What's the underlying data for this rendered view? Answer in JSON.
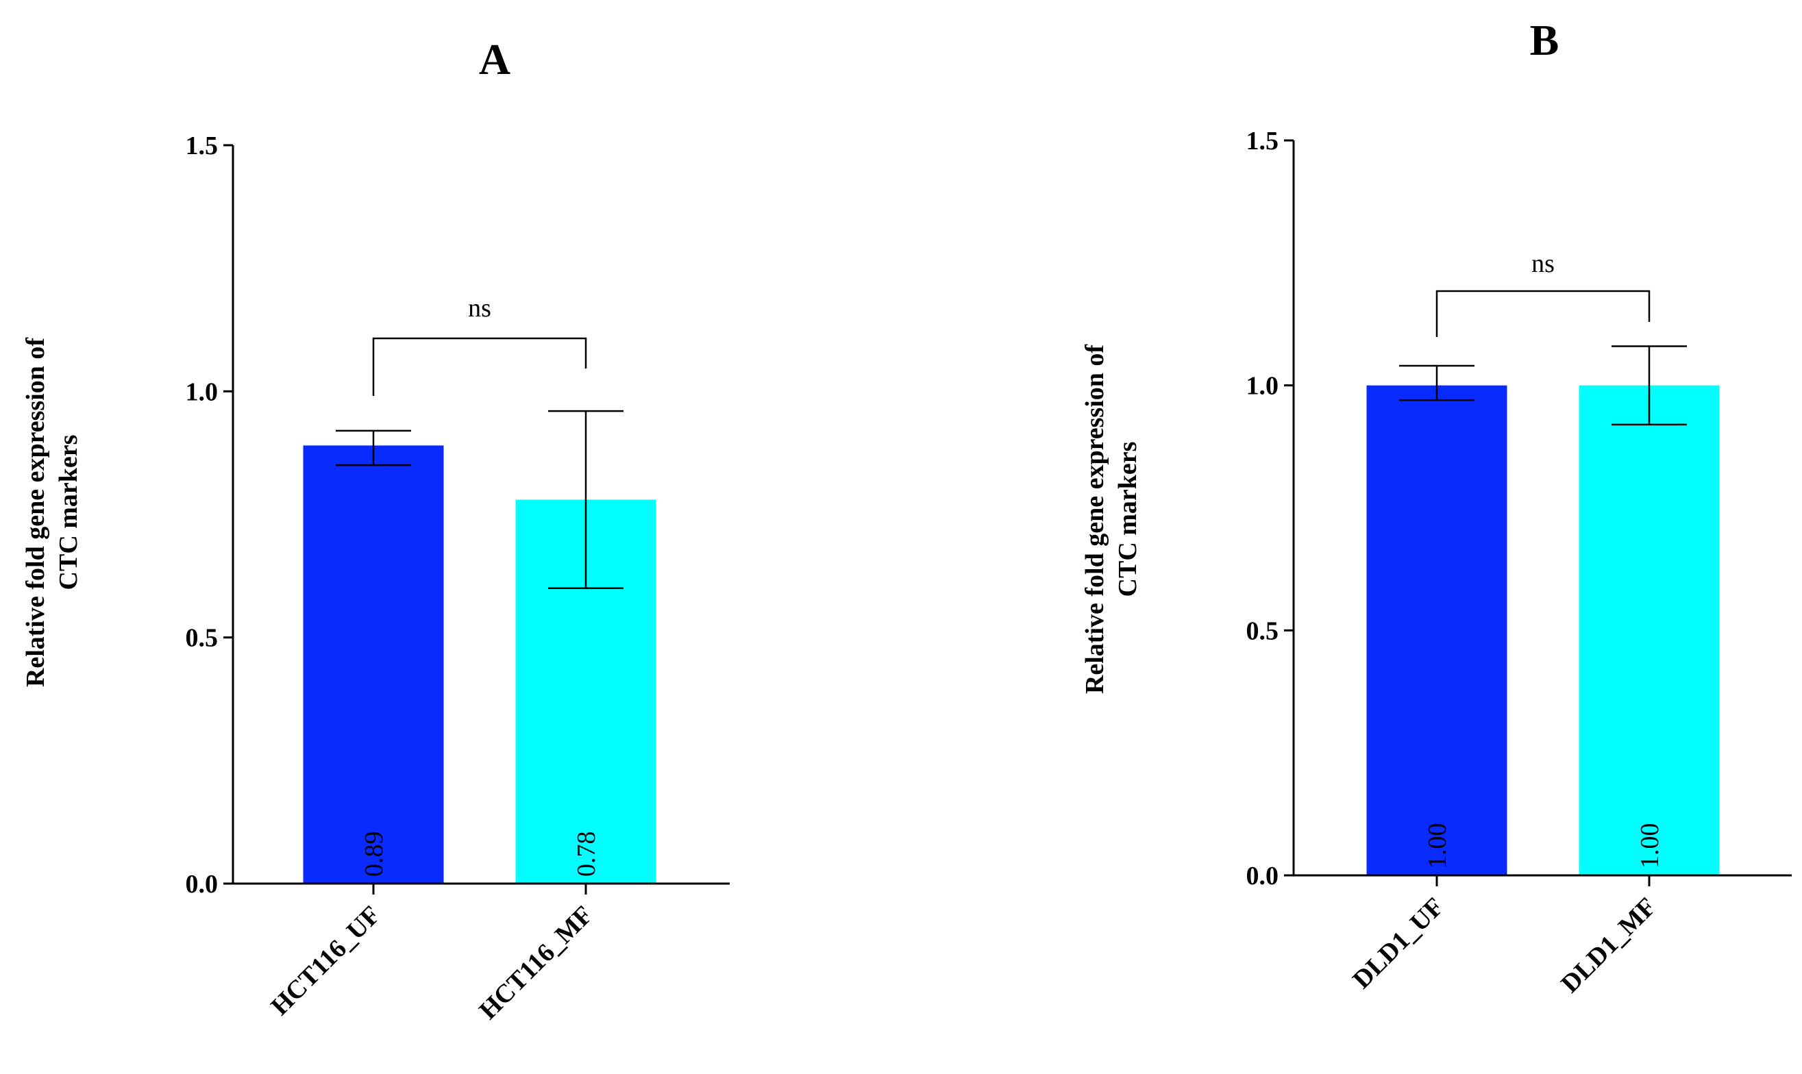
{
  "chart_data": [
    {
      "panel": "A",
      "type": "bar",
      "ylabel_line1": "Relative fold gene expression of",
      "ylabel_line2": "CTC markers",
      "ylim": [
        0,
        1.5
      ],
      "yticks": [
        "0.0",
        "0.5",
        "1.0",
        "1.5"
      ],
      "categories": [
        "HCT116_UF",
        "HCT116_MF"
      ],
      "values": [
        0.89,
        0.78
      ],
      "value_labels": [
        "0.89",
        "0.78"
      ],
      "error_high": [
        0.92,
        0.96
      ],
      "error_low": [
        0.85,
        0.6
      ],
      "colors": [
        "#0a2bff",
        "#00ffff"
      ],
      "significance": "ns"
    },
    {
      "panel": "B",
      "type": "bar",
      "ylabel_line1": "Relative fold gene expression of",
      "ylabel_line2": "CTC markers",
      "ylim": [
        0,
        1.5
      ],
      "yticks": [
        "0.0",
        "0.5",
        "1.0",
        "1.5"
      ],
      "categories": [
        "DLD1_UF",
        "DLD1_MF"
      ],
      "values": [
        1.0,
        1.0
      ],
      "value_labels": [
        "1.00",
        "1.00"
      ],
      "error_high": [
        1.04,
        1.08
      ],
      "error_low": [
        0.97,
        0.92
      ],
      "colors": [
        "#0a2bff",
        "#00ffff"
      ],
      "significance": "ns"
    }
  ]
}
